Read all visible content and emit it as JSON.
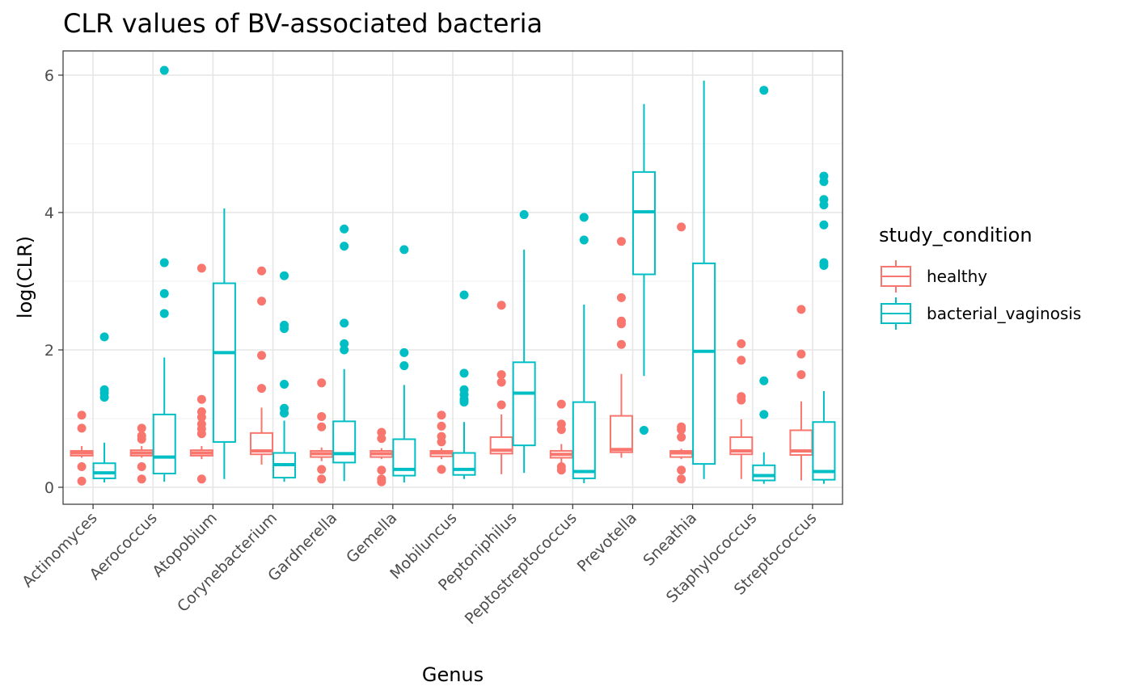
{
  "chart_data": {
    "type": "box",
    "title": "CLR values of BV-associated bacteria",
    "xlabel": "Genus",
    "ylabel": "log(CLR)",
    "ylim": [
      -0.25,
      6.35
    ],
    "yticks": [
      0,
      2,
      4,
      6
    ],
    "grid": true,
    "legend": {
      "title": "study_condition",
      "position": "right",
      "entries": [
        "healthy",
        "bacterial_vaginosis"
      ]
    },
    "colors": {
      "healthy": "#F8766D",
      "bacterial_vaginosis": "#00BFC4"
    },
    "categories": [
      "Actinomyces",
      "Aerococcus",
      "Atopobium",
      "Corynebacterium",
      "Gardnerella",
      "Gemella",
      "Mobiluncus",
      "Peptoniphilus",
      "Peptostreptococcus",
      "Prevotella",
      "Sneathia",
      "Staphylococcus",
      "Streptococcus"
    ],
    "series": [
      {
        "name": "healthy",
        "boxes": [
          {
            "whisker_low": 0.43,
            "q1": 0.46,
            "median": 0.5,
            "q3": 0.53,
            "whisker_high": 0.6,
            "outliers": [
              1.05,
              0.86,
              0.3,
              0.09
            ]
          },
          {
            "whisker_low": 0.43,
            "q1": 0.46,
            "median": 0.5,
            "q3": 0.54,
            "whisker_high": 0.6,
            "outliers": [
              0.86,
              0.75,
              0.7,
              0.3,
              0.12
            ]
          },
          {
            "whisker_low": 0.41,
            "q1": 0.46,
            "median": 0.5,
            "q3": 0.54,
            "whisker_high": 0.6,
            "outliers": [
              3.19,
              1.28,
              1.1,
              1.02,
              0.92,
              0.85,
              0.78,
              0.12
            ]
          },
          {
            "whisker_low": 0.33,
            "q1": 0.48,
            "median": 0.53,
            "q3": 0.79,
            "whisker_high": 1.16,
            "outliers": [
              3.15,
              2.71,
              1.92,
              1.44
            ]
          },
          {
            "whisker_low": 0.38,
            "q1": 0.44,
            "median": 0.49,
            "q3": 0.53,
            "whisker_high": 0.58,
            "outliers": [
              1.52,
              1.03,
              0.88,
              0.26,
              0.12
            ]
          },
          {
            "whisker_low": 0.41,
            "q1": 0.44,
            "median": 0.49,
            "q3": 0.53,
            "whisker_high": 0.57,
            "outliers": [
              0.8,
              0.71,
              0.25,
              0.12,
              0.08
            ]
          },
          {
            "whisker_low": 0.41,
            "q1": 0.45,
            "median": 0.5,
            "q3": 0.53,
            "whisker_high": 0.57,
            "outliers": [
              1.05,
              0.89,
              0.74,
              0.66,
              0.26
            ]
          },
          {
            "whisker_low": 0.19,
            "q1": 0.49,
            "median": 0.54,
            "q3": 0.73,
            "whisker_high": 1.06,
            "outliers": [
              2.65,
              1.64,
              1.53,
              1.2
            ]
          },
          {
            "whisker_low": 0.35,
            "q1": 0.43,
            "median": 0.48,
            "q3": 0.53,
            "whisker_high": 0.63,
            "outliers": [
              1.21,
              0.92,
              0.84,
              0.3,
              0.25
            ]
          },
          {
            "whisker_low": 0.43,
            "q1": 0.51,
            "median": 0.55,
            "q3": 1.04,
            "whisker_high": 1.65,
            "outliers": [
              3.58,
              2.76,
              2.42,
              2.38,
              2.08
            ]
          },
          {
            "whisker_low": 0.41,
            "q1": 0.44,
            "median": 0.5,
            "q3": 0.53,
            "whisker_high": 0.56,
            "outliers": [
              3.79,
              0.88,
              0.84,
              0.73,
              0.25,
              0.12
            ]
          },
          {
            "whisker_low": 0.12,
            "q1": 0.48,
            "median": 0.53,
            "q3": 0.73,
            "whisker_high": 0.99,
            "outliers": [
              2.09,
              1.85,
              1.32,
              1.27
            ]
          },
          {
            "whisker_low": 0.1,
            "q1": 0.47,
            "median": 0.53,
            "q3": 0.83,
            "whisker_high": 1.25,
            "outliers": [
              2.59,
              1.94,
              1.64
            ]
          }
        ]
      },
      {
        "name": "bacterial_vaginosis",
        "boxes": [
          {
            "whisker_low": 0.07,
            "q1": 0.13,
            "median": 0.21,
            "q3": 0.35,
            "whisker_high": 0.65,
            "outliers": [
              2.19,
              1.42,
              1.37,
              1.31
            ]
          },
          {
            "whisker_low": 0.08,
            "q1": 0.2,
            "median": 0.44,
            "q3": 1.06,
            "whisker_high": 1.89,
            "outliers": [
              6.07,
              3.27,
              2.82,
              2.53
            ]
          },
          {
            "whisker_low": 0.12,
            "q1": 0.66,
            "median": 1.96,
            "q3": 2.97,
            "whisker_high": 4.06,
            "outliers": []
          },
          {
            "whisker_low": 0.08,
            "q1": 0.14,
            "median": 0.33,
            "q3": 0.5,
            "whisker_high": 0.97,
            "outliers": [
              3.08,
              2.36,
              2.31,
              1.5,
              1.15,
              1.08
            ]
          },
          {
            "whisker_low": 0.09,
            "q1": 0.36,
            "median": 0.49,
            "q3": 0.96,
            "whisker_high": 1.72,
            "outliers": [
              3.76,
              3.51,
              2.39,
              2.09,
              2.0
            ]
          },
          {
            "whisker_low": 0.07,
            "q1": 0.17,
            "median": 0.26,
            "q3": 0.7,
            "whisker_high": 1.49,
            "outliers": [
              3.46,
              1.96,
              1.77
            ]
          },
          {
            "whisker_low": 0.12,
            "q1": 0.18,
            "median": 0.26,
            "q3": 0.5,
            "whisker_high": 0.95,
            "outliers": [
              2.8,
              1.66,
              1.42,
              1.35,
              1.28,
              1.24
            ]
          },
          {
            "whisker_low": 0.21,
            "q1": 0.61,
            "median": 1.37,
            "q3": 1.82,
            "whisker_high": 3.46,
            "outliers": [
              3.97
            ]
          },
          {
            "whisker_low": 0.06,
            "q1": 0.13,
            "median": 0.23,
            "q3": 1.24,
            "whisker_high": 2.66,
            "outliers": [
              3.93,
              3.6
            ]
          },
          {
            "whisker_low": 1.62,
            "q1": 3.1,
            "median": 4.01,
            "q3": 4.59,
            "whisker_high": 5.58,
            "outliers": [
              0.83
            ]
          },
          {
            "whisker_low": 0.12,
            "q1": 0.34,
            "median": 1.98,
            "q3": 3.26,
            "whisker_high": 5.92,
            "outliers": []
          },
          {
            "whisker_low": 0.05,
            "q1": 0.1,
            "median": 0.17,
            "q3": 0.32,
            "whisker_high": 0.51,
            "outliers": [
              5.78,
              1.55,
              1.06
            ]
          },
          {
            "whisker_low": 0.05,
            "q1": 0.11,
            "median": 0.23,
            "q3": 0.95,
            "whisker_high": 1.4,
            "outliers": [
              4.53,
              4.45,
              4.19,
              4.11,
              3.82,
              3.27,
              3.23
            ]
          }
        ]
      }
    ]
  }
}
